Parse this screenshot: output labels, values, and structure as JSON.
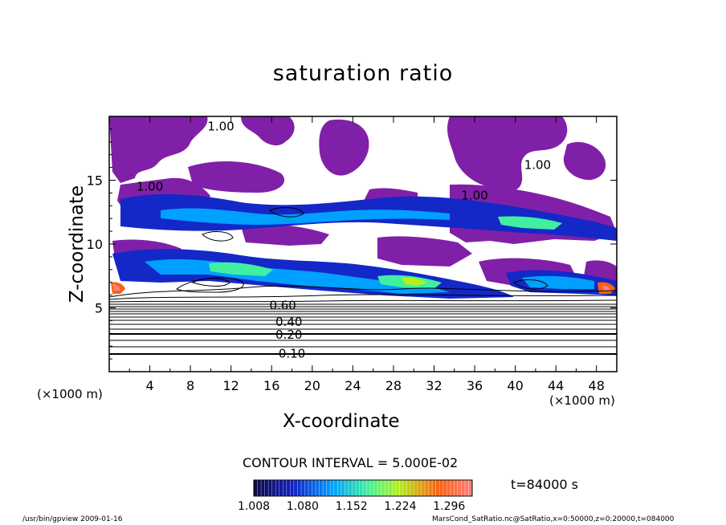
{
  "chart_data": {
    "type": "heatmap",
    "title": "saturation ratio",
    "xlabel": "X-coordinate",
    "ylabel": "Z-coordinate",
    "x_unit_left": "(×1000 m)",
    "x_unit_right": "(×1000 m)",
    "xlim": [
      0,
      50
    ],
    "ylim": [
      0,
      20
    ],
    "x_ticks": [
      4,
      8,
      12,
      16,
      20,
      24,
      28,
      32,
      36,
      40,
      44,
      48
    ],
    "y_ticks": [
      5,
      10,
      15
    ],
    "contour_labels": [
      {
        "text": "0.10",
        "x": 18,
        "z": 1.4
      },
      {
        "text": "0.20",
        "x": 17.7,
        "z": 2.9
      },
      {
        "text": "0.40",
        "x": 17.7,
        "z": 3.9
      },
      {
        "text": "0.60",
        "x": 17.1,
        "z": 5.2
      },
      {
        "text": "1.00",
        "x": 4,
        "z": 14.5
      },
      {
        "text": "1.00",
        "x": 11,
        "z": 19.2
      },
      {
        "text": "1.00",
        "x": 36,
        "z": 13.8
      },
      {
        "text": "1.00",
        "x": 42.2,
        "z": 16.2
      }
    ],
    "colorbar": {
      "ticks": [
        1.008,
        1.08,
        1.152,
        1.224,
        1.296
      ],
      "tick_labels": [
        "1.008",
        "1.080",
        "1.152",
        "1.224",
        "1.296"
      ],
      "min": 1.008,
      "max": 1.33,
      "colormap": [
        "#0a0a40",
        "#1420c8",
        "#00a0ff",
        "#40f0a0",
        "#b0f020",
        "#ff6010",
        "#ff8080"
      ]
    },
    "contour_interval": "CONTOUR INTERVAL = 5.000E-02",
    "time": "t=84000 s",
    "grid": false,
    "colors": {
      "saturated": "#8020a8"
    }
  },
  "footer": {
    "left": "/usr/bin/gpview   2009-01-16",
    "right": "MarsCond_SatRatio.nc@SatRatio,x=0:50000,z=0:20000,t=084000"
  }
}
